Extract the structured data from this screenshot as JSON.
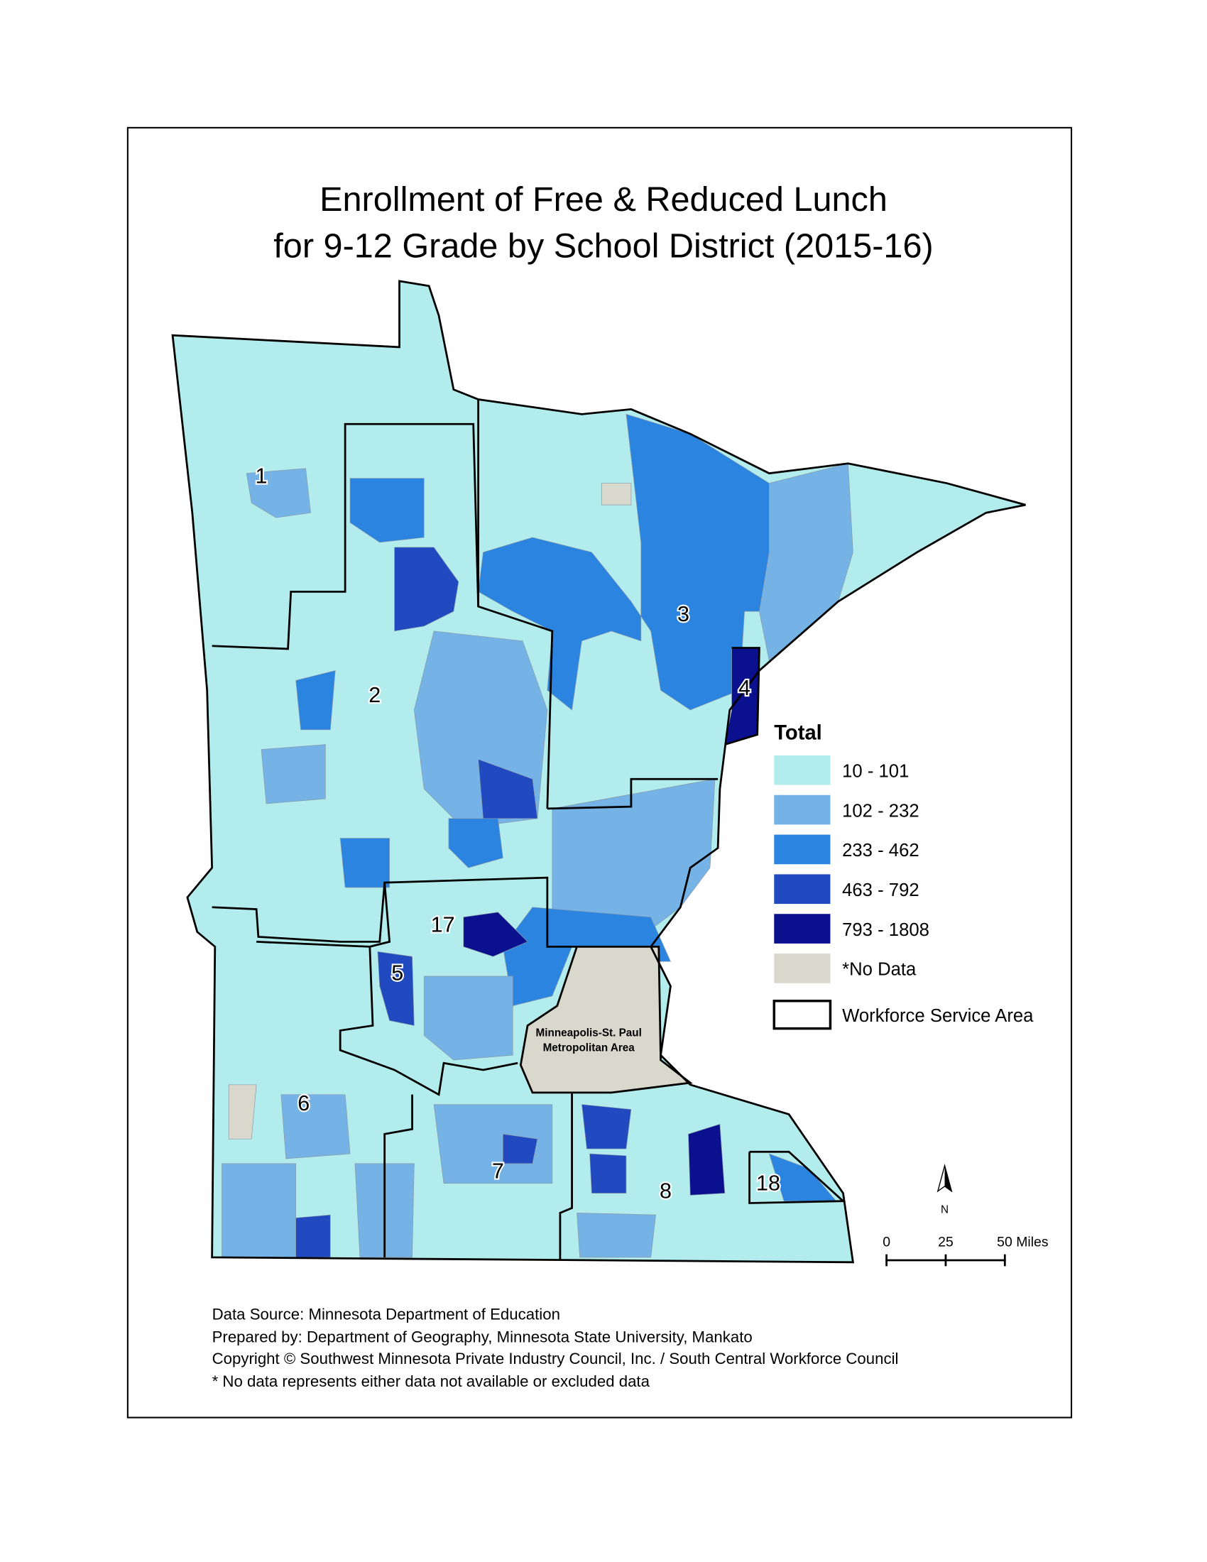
{
  "title": [
    "Enrollment of Free & Reduced Lunch",
    "for 9-12 Grade by School District (2015-16)"
  ],
  "legend": {
    "title": "Total",
    "items": [
      {
        "label": "10 - 101",
        "color": "#b3ecec"
      },
      {
        "label": "102 - 232",
        "color": "#75b2e6"
      },
      {
        "label": "233 - 462",
        "color": "#2b84e0"
      },
      {
        "label": "463 - 792",
        "color": "#2149c0"
      },
      {
        "label": "793 - 1808",
        "color": "#0b108e"
      },
      {
        "label": "*No Data",
        "color": "#d9d8cc"
      }
    ],
    "boundary": "Workforce Service Area"
  },
  "map_labels": [
    "1",
    "2",
    "3",
    "4",
    "5",
    "6",
    "7",
    "8",
    "17",
    "18"
  ],
  "metro_label": [
    "Minneapolis-St. Paul",
    "Metropolitan Area"
  ],
  "north": "N",
  "scale_bar": [
    "0",
    "25",
    "50 Miles"
  ],
  "footer": [
    "Data Source: Minnesota Department of Education",
    "Prepared by: Department of Geography, Minnesota State University, Mankato",
    "Copyright © Southwest Minnesota Private Industry Council, Inc. / South Central Workforce Council",
    "* No data represents either data not available or excluded data"
  ]
}
